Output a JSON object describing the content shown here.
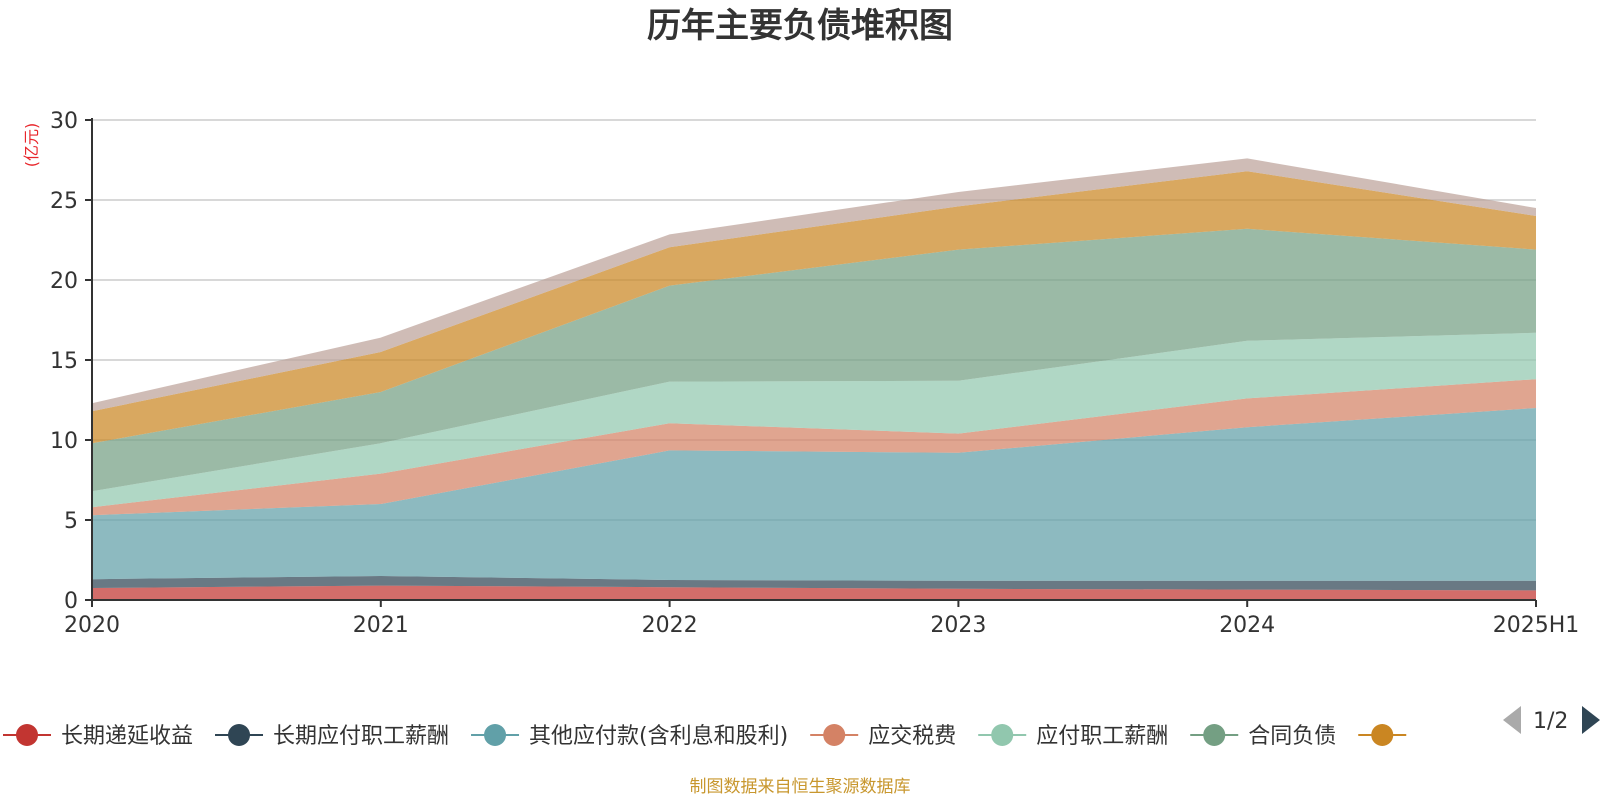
{
  "chart_data": {
    "type": "area",
    "stacked": true,
    "title": "历年主要负债堆积图",
    "unit_label": "(亿元)",
    "x": [
      "2020",
      "2021",
      "2022",
      "2023",
      "2024",
      "2025H1"
    ],
    "ylim": [
      0,
      30
    ],
    "yticks": [
      0,
      5,
      10,
      15,
      20,
      25,
      30
    ],
    "grid": true,
    "series": [
      {
        "name": "长期递延收益",
        "color": "#c23531",
        "values": [
          0.75,
          0.9,
          0.8,
          0.7,
          0.65,
          0.6
        ]
      },
      {
        "name": "长期应付职工薪酬",
        "color": "#2f4554",
        "values": [
          0.55,
          0.6,
          0.45,
          0.5,
          0.55,
          0.6
        ]
      },
      {
        "name": "其他应付款(含利息和股利)",
        "color": "#61a0a8",
        "values": [
          4.0,
          4.5,
          8.1,
          8.0,
          9.6,
          10.8
        ]
      },
      {
        "name": "应交税费",
        "color": "#d48265",
        "values": [
          0.5,
          1.9,
          1.7,
          1.2,
          1.8,
          1.8
        ]
      },
      {
        "name": "应付职工薪酬",
        "color": "#91c7ae",
        "values": [
          1.0,
          1.9,
          2.6,
          3.3,
          3.6,
          2.9
        ]
      },
      {
        "name": "合同负债",
        "color": "#749f83",
        "values": [
          3.0,
          3.2,
          6.0,
          8.2,
          7.0,
          5.2
        ]
      },
      {
        "name": "",
        "color": "#ca8622",
        "values": [
          2.0,
          2.5,
          2.4,
          2.7,
          3.6,
          2.1
        ]
      },
      {
        "name": "",
        "color": "#bda29a",
        "values": [
          0.5,
          0.9,
          0.8,
          0.9,
          0.8,
          0.5
        ]
      }
    ],
    "legend": {
      "position": "bottom",
      "page": "1/2"
    },
    "source": "制图数据来自恒生聚源数据库"
  }
}
